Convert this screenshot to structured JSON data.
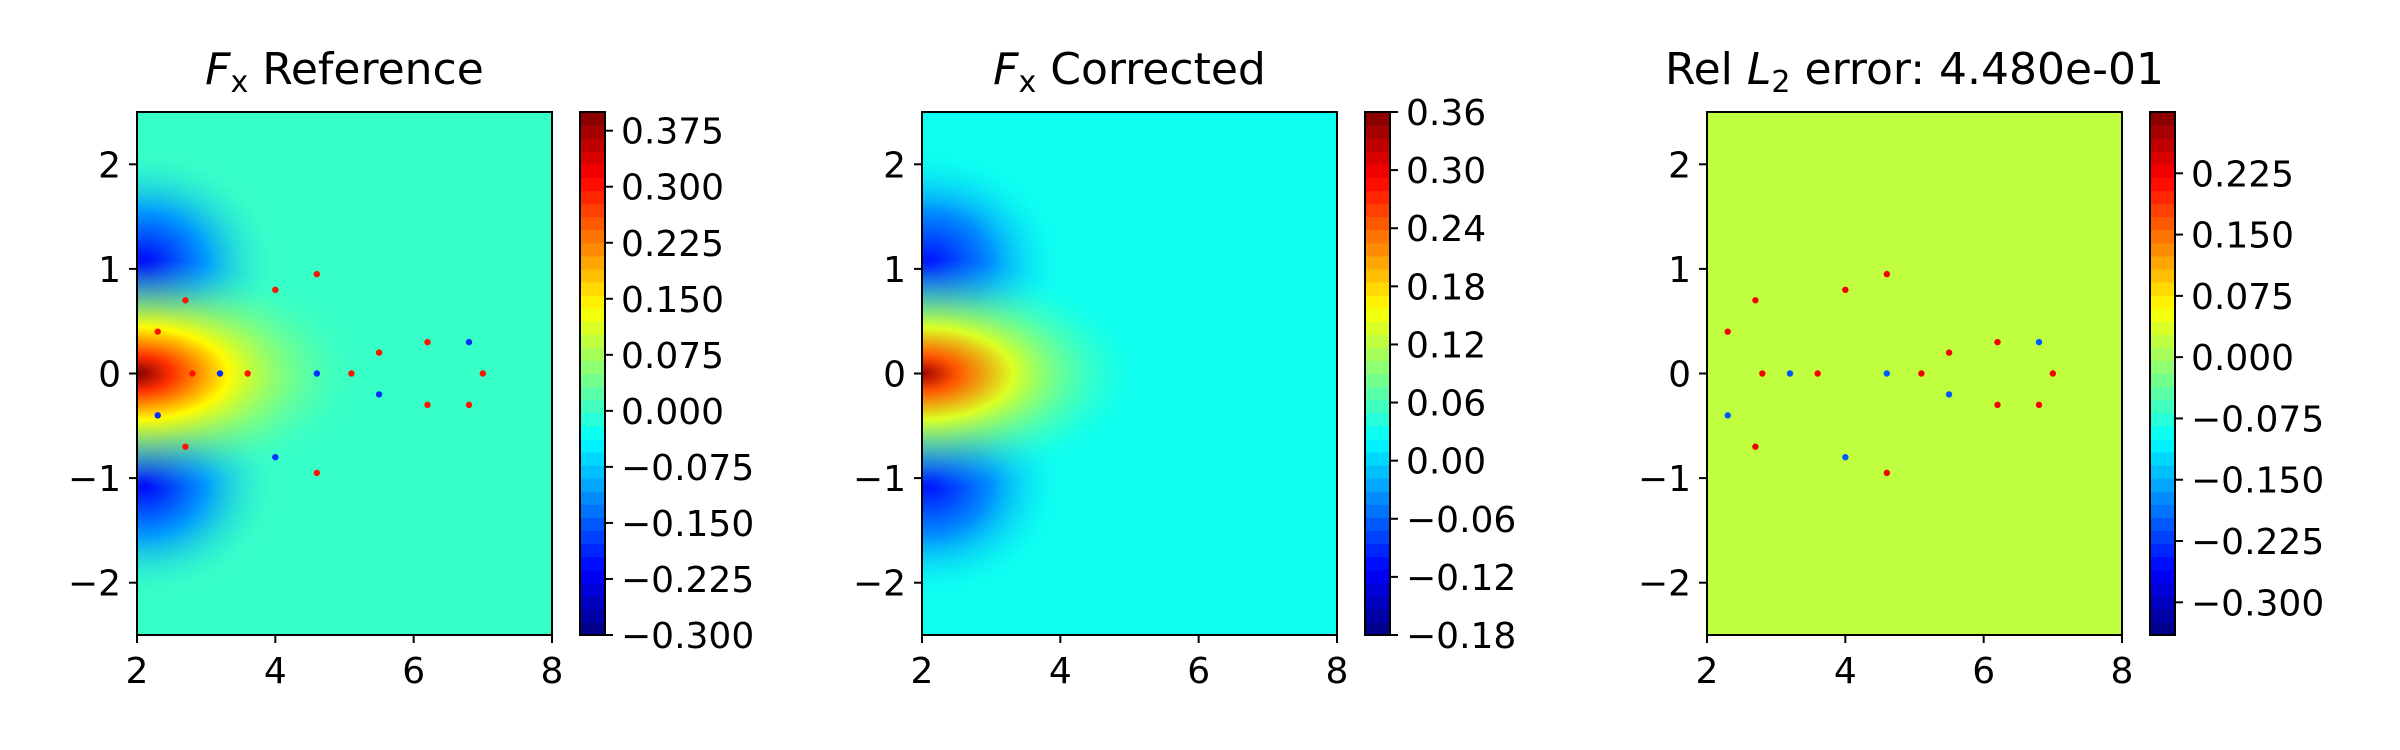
{
  "chart_data": [
    {
      "type": "heatmap",
      "title": {
        "prefix": "F",
        "sub": "x",
        "text": " Reference"
      },
      "xticks": [
        "2",
        "4",
        "6",
        "8"
      ],
      "yticks": [
        "2",
        "1",
        "0",
        "−1",
        "−2"
      ],
      "xlim": [
        2,
        8
      ],
      "ylim": [
        -2.5,
        2.5
      ],
      "colorbar": {
        "ticks": [
          "0.375",
          "0.300",
          "0.225",
          "0.150",
          "0.075",
          "0.000",
          "−0.075",
          "−0.150",
          "−0.225",
          "−0.300"
        ],
        "range": [
          -0.3,
          0.4
        ],
        "colormap": "jet",
        "background_value": 0.0
      },
      "features": {
        "dipole": 1.0,
        "lobes": 1.0,
        "dots": true
      }
    },
    {
      "type": "heatmap",
      "title": {
        "prefix": "F",
        "sub": "x",
        "text": " Corrected"
      },
      "xticks": [
        "2",
        "4",
        "6",
        "8"
      ],
      "yticks": [
        "2",
        "1",
        "0",
        "−1",
        "−2"
      ],
      "xlim": [
        2,
        8
      ],
      "ylim": [
        -2.5,
        2.5
      ],
      "colorbar": {
        "ticks": [
          "0.36",
          "0.30",
          "0.24",
          "0.18",
          "0.12",
          "0.06",
          "0.00",
          "−0.06",
          "−0.12",
          "−0.18"
        ],
        "range": [
          -0.18,
          0.36
        ],
        "colormap": "jet",
        "background_value": 0.03
      },
      "features": {
        "dipole": 0.95,
        "lobes": 0.9,
        "dots": false
      }
    },
    {
      "type": "heatmap",
      "title": {
        "prefix": "Rel L",
        "sub": "2",
        "text": " error: 4.480e-01"
      },
      "xticks": [
        "2",
        "4",
        "6",
        "8"
      ],
      "yticks": [
        "2",
        "1",
        "0",
        "−1",
        "−2"
      ],
      "xlim": [
        2,
        8
      ],
      "ylim": [
        -2.5,
        2.5
      ],
      "colorbar": {
        "ticks": [
          "0.225",
          "0.150",
          "0.075",
          "0.000",
          "−0.075",
          "−0.150",
          "−0.225",
          "−0.300"
        ],
        "range": [
          -0.34,
          0.3
        ],
        "colormap": "jet",
        "background_value": 0.02
      },
      "features": {
        "dipole": 0.0,
        "lobes": 0.0,
        "dots": true
      }
    }
  ]
}
